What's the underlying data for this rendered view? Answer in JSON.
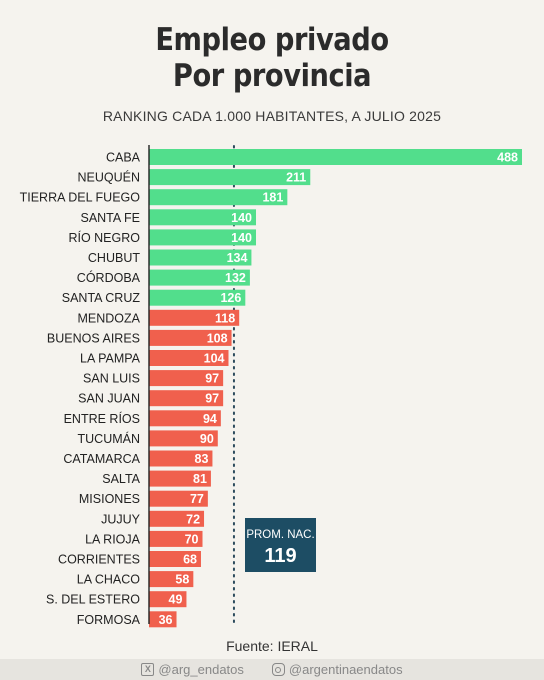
{
  "header": {
    "title_line1": "Empleo privado",
    "title_line2": "Por provincia",
    "subtitle": "RANKING CADA 1.000 HABITANTES, A JULIO 2025"
  },
  "chart_data": {
    "type": "bar",
    "orientation": "horizontal",
    "title": "Empleo privado Por provincia",
    "subtitle": "RANKING CADA 1.000 HABITANTES, A JULIO 2025",
    "categories": [
      "CABA",
      "NEUQUÉN",
      "TIERRA DEL FUEGO",
      "SANTA FE",
      "RÍO NEGRO",
      "CHUBUT",
      "CÓRDOBA",
      "SANTA CRUZ",
      "MENDOZA",
      "BUENOS AIRES",
      "LA PAMPA",
      "SAN LUIS",
      "SAN JUAN",
      "ENTRE RÍOS",
      "TUCUMÁN",
      "CATAMARCA",
      "SALTA",
      "MISIONES",
      "JUJUY",
      "LA RIOJA",
      "CORRIENTES",
      "LA CHACO",
      "S. DEL ESTERO",
      "FORMOSA"
    ],
    "values": [
      488,
      211,
      181,
      140,
      140,
      134,
      132,
      126,
      118,
      108,
      104,
      97,
      97,
      94,
      90,
      83,
      81,
      77,
      72,
      70,
      68,
      58,
      49,
      36
    ],
    "reference_line": {
      "label": "PROM. NAC.",
      "value": 119
    },
    "colors": {
      "above_average": "#52de8c",
      "below_average": "#f0604d",
      "reference_box": "#1d4d64"
    },
    "xlim": [
      0,
      500
    ],
    "grid": false
  },
  "source": "Fuente: IERAL",
  "footer": {
    "x_handle": "@arg_endatos",
    "x_icon": "x-icon",
    "instagram_handle": "@argentinaendatos",
    "instagram_icon": "instagram-icon"
  }
}
